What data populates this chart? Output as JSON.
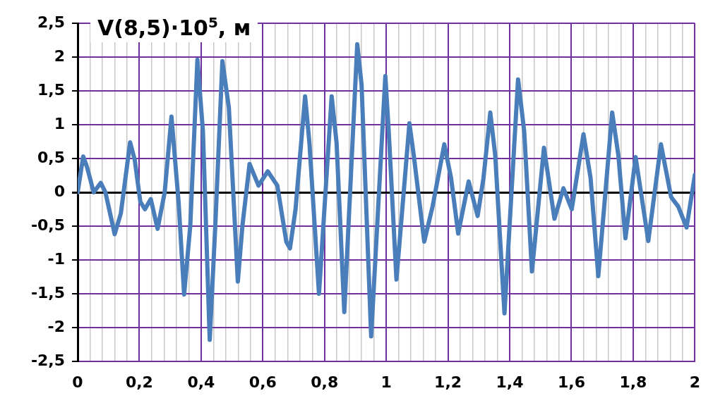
{
  "chart_data": {
    "type": "line",
    "title": "V(8,5)·10$^{5}$, м",
    "x": [
      0,
      0.018,
      0.03,
      0.052,
      0.075,
      0.09,
      0.12,
      0.14,
      0.17,
      0.185,
      0.203,
      0.218,
      0.237,
      0.259,
      0.282,
      0.304,
      0.327,
      0.345,
      0.365,
      0.388,
      0.406,
      0.428,
      0.446,
      0.469,
      0.49,
      0.519,
      0.534,
      0.557,
      0.586,
      0.616,
      0.647,
      0.676,
      0.688,
      0.706,
      0.737,
      0.751,
      0.782,
      0.823,
      0.839,
      0.864,
      0.906,
      0.92,
      0.951,
      0.997,
      1.008,
      1.033,
      1.075,
      1.089,
      1.123,
      1.15,
      1.188,
      1.21,
      1.233,
      1.267,
      1.296,
      1.315,
      1.337,
      1.353,
      1.383,
      1.427,
      1.447,
      1.472,
      1.511,
      1.545,
      1.574,
      1.601,
      1.639,
      1.662,
      1.687,
      1.732,
      1.752,
      1.775,
      1.808,
      1.849,
      1.89,
      1.923,
      1.946,
      1.973,
      2.0
    ],
    "series": [
      {
        "color": "#4a7ebb",
        "values": [
          0,
          0.53,
          0.38,
          0,
          0.14,
          0,
          -0.62,
          -0.31,
          0.74,
          0.48,
          -0.14,
          -0.25,
          -0.1,
          -0.54,
          0,
          1.12,
          -0.14,
          -1.51,
          -0.49,
          1.96,
          0.9,
          -2.18,
          -0.49,
          1.94,
          1.25,
          -1.32,
          -0.49,
          0.42,
          0.1,
          0.31,
          0.1,
          -0.73,
          -0.83,
          -0.25,
          1.42,
          0.73,
          -1.5,
          1.42,
          0.73,
          -1.77,
          2.19,
          1.59,
          -2.13,
          1.72,
          0.9,
          -1.29,
          1.02,
          0.55,
          -0.73,
          -0.21,
          0.71,
          0.21,
          -0.61,
          0.16,
          -0.35,
          0.21,
          1.18,
          0.55,
          -1.79,
          1.67,
          0.9,
          -1.17,
          0.66,
          -0.39,
          0.06,
          -0.25,
          0.86,
          0.21,
          -1.24,
          1.18,
          0.55,
          -0.68,
          0.52,
          -0.72,
          0.71,
          -0.07,
          -0.21,
          -0.52,
          0.26
        ]
      }
    ],
    "xlim": [
      0,
      2
    ],
    "xticks": [
      0,
      {
        "value": 0.04,
        "label": null
      },
      {
        "value": 0.08,
        "label": null
      },
      {
        "value": 0.12,
        "label": null
      },
      {
        "value": 0.16,
        "label": null
      },
      {
        "value": 0.2,
        "label": "0,2"
      },
      {
        "value": 0.24,
        "label": null
      },
      {
        "value": 0.28,
        "label": null
      },
      {
        "value": 0.32,
        "label": null
      },
      {
        "value": 0.36,
        "label": null
      },
      {
        "value": 0.4,
        "label": "0,4"
      },
      {
        "value": 0.44,
        "label": null
      },
      {
        "value": 0.48,
        "label": null
      },
      {
        "value": 0.52,
        "label": null
      },
      {
        "value": 0.56,
        "label": null
      },
      {
        "value": 0.6,
        "label": "0,6"
      },
      {
        "value": 0.64,
        "label": null
      },
      {
        "value": 0.68,
        "label": null
      },
      {
        "value": 0.72,
        "label": null
      },
      {
        "value": 0.76,
        "label": null
      },
      {
        "value": 0.8,
        "label": "0,8"
      },
      {
        "value": 0.84,
        "label": null
      },
      {
        "value": 0.88,
        "label": null
      },
      {
        "value": 0.92,
        "label": null
      },
      {
        "value": 0.96,
        "label": null
      },
      1,
      {
        "value": 1.04,
        "label": null
      },
      {
        "value": 1.08,
        "label": null
      },
      {
        "value": 1.12,
        "label": null
      },
      {
        "value": 1.16,
        "label": null
      },
      {
        "value": 1.2,
        "label": "1,2"
      },
      {
        "value": 1.24,
        "label": null
      },
      {
        "value": 1.28,
        "label": null
      },
      {
        "value": 1.32,
        "label": null
      },
      {
        "value": 1.36,
        "label": null
      },
      {
        "value": 1.4,
        "label": "1,4"
      },
      {
        "value": 1.44,
        "label": null
      },
      {
        "value": 1.48,
        "label": null
      },
      {
        "value": 1.52,
        "label": null
      },
      {
        "value": 1.56,
        "label": null
      },
      {
        "value": 1.6,
        "label": "1,6"
      },
      {
        "value": 1.64,
        "label": null
      },
      {
        "value": 1.68,
        "label": null
      },
      {
        "value": 1.72,
        "label": null
      },
      {
        "value": 1.76,
        "label": null
      },
      {
        "value": 1.8,
        "label": "1,8"
      },
      {
        "value": 1.84,
        "label": null
      },
      {
        "value": 1.88,
        "label": null
      },
      {
        "value": 1.92,
        "label": null
      },
      {
        "value": 1.96,
        "label": null
      },
      2
    ],
    "ylim": [
      -2.5,
      2.5
    ],
    "yticks": [
      {
        "value": -2.5,
        "label": "-2,5"
      },
      -2,
      {
        "value": -1.5,
        "label": "-1,5"
      },
      -1,
      {
        "value": -0.5,
        "label": "-0,5"
      },
      0,
      {
        "value": 0.5,
        "label": "0,5"
      },
      1,
      {
        "value": 1.5,
        "label": "1,5"
      },
      2,
      {
        "value": 2.5,
        "label": "2,5"
      }
    ],
    "grid": true,
    "legend": false,
    "marker": "none",
    "line_style": "solid"
  }
}
